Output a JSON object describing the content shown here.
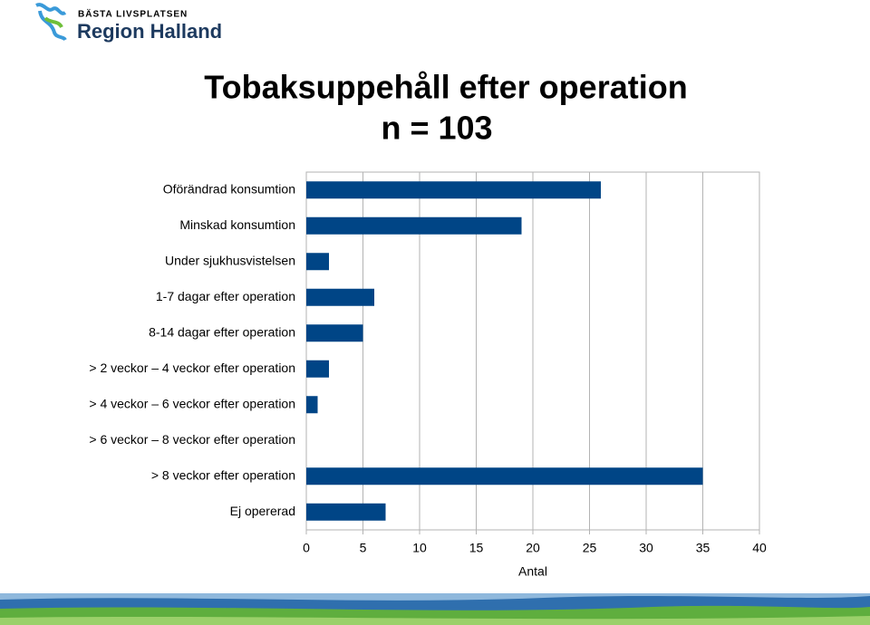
{
  "logo": {
    "tagline": "BÄSTA LIVSPLATSEN",
    "name": "Region Halland"
  },
  "chart_data": {
    "type": "hbar",
    "title": "Tobaksuppehåll efter operation",
    "subtitle": "n = 103",
    "x_label": "Antal",
    "categories": [
      "Oförändrad konsumtion",
      "Minskad konsumtion",
      "Under sjukhusvistelsen",
      "1-7 dagar efter operation",
      "8-14 dagar efter operation",
      "> 2 veckor – 4 veckor efter operation",
      "> 4 veckor – 6 veckor efter operation",
      "> 6 veckor – 8 veckor efter operation",
      "> 8 veckor efter operation",
      "Ej opererad"
    ],
    "values": [
      26,
      19,
      2,
      6,
      5,
      2,
      1,
      0,
      35,
      7
    ],
    "color": "#004586",
    "xlim": [
      0,
      40
    ],
    "xticks": [
      0,
      5,
      10,
      15,
      20,
      25,
      30,
      35,
      40
    ],
    "grid": true
  }
}
